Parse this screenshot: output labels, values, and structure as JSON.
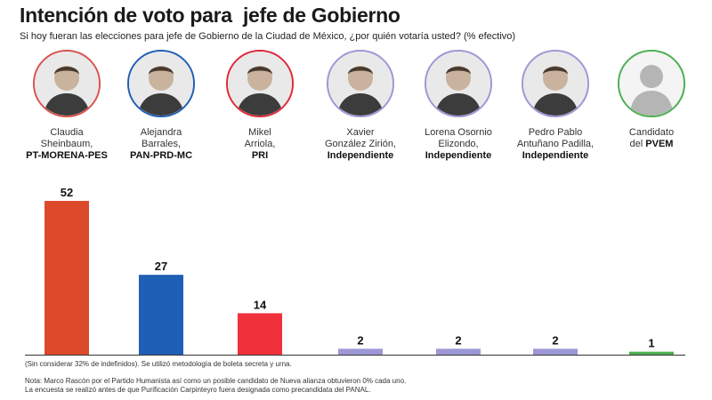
{
  "title": "Intención de voto para  jefe de Gobierno",
  "subtitle": "Si hoy fueran las elecciones para jefe de Gobierno de la Ciudad de México, ¿por quién votaría usted? (% efectivo)",
  "candidates": [
    {
      "name_lines": [
        "Claudia",
        "Sheinbaum,"
      ],
      "party_prefix": "",
      "party": "PT-MORENA-PES",
      "ring_color": "#d9534f",
      "icon": "candidate-photo-icon"
    },
    {
      "name_lines": [
        "Alejandra",
        "Barrales,"
      ],
      "party_prefix": "",
      "party": "PAN-PRD-MC",
      "ring_color": "#1f5fb5",
      "icon": "candidate-photo-icon"
    },
    {
      "name_lines": [
        "Mikel",
        "Arriola,"
      ],
      "party_prefix": "",
      "party": "PRI",
      "ring_color": "#e0293a",
      "icon": "candidate-photo-icon"
    },
    {
      "name_lines": [
        "Xavier",
        "González Zirión,"
      ],
      "party_prefix": "",
      "party": "Independiente",
      "ring_color": "#9d97d6",
      "icon": "candidate-photo-icon"
    },
    {
      "name_lines": [
        "Lorena Osornio",
        "Elizondo,"
      ],
      "party_prefix": "",
      "party": "Independiente",
      "ring_color": "#9d97d6",
      "icon": "candidate-photo-icon"
    },
    {
      "name_lines": [
        "Pedro Pablo",
        "Antuñano Padilla,"
      ],
      "party_prefix": "",
      "party": "Independiente",
      "ring_color": "#9d97d6",
      "icon": "candidate-photo-icon"
    },
    {
      "name_lines": [
        "Candidato"
      ],
      "party_prefix": "del ",
      "party": "PVEM",
      "ring_color": "#4caf50",
      "icon": "silhouette-icon"
    }
  ],
  "chart_data": {
    "type": "bar",
    "categories": [
      "Claudia Sheinbaum",
      "Alejandra Barrales",
      "Mikel Arriola",
      "Xavier González Zirión",
      "Lorena Osornio Elizondo",
      "Pedro Pablo Antuñano Padilla",
      "Candidato del PVEM"
    ],
    "values": [
      52,
      27,
      14,
      2,
      2,
      2,
      1
    ],
    "colors": [
      "#dd4a2b",
      "#1f5fb5",
      "#f0303a",
      "#9d97d6",
      "#9d97d6",
      "#9d97d6",
      "#4caf50"
    ],
    "title": "Intención de voto para  jefe de Gobierno",
    "xlabel": "",
    "ylabel": "",
    "ylim": [
      0,
      52
    ],
    "grid": false
  },
  "notes": {
    "footnote": "(Sin considerar 32% de indefinidos). Se utilizó metodología de boleta secreta y urna.",
    "note_lines": [
      "Nota: Marco Rascón por el Partido Humanista así como un posible candidato de Nueva alianza obtuvieron 0% cada uno.",
      "La encuesta se realizó antes de que Purificación Carpinteyro fuera designada como precandidata del  PANAL."
    ]
  }
}
